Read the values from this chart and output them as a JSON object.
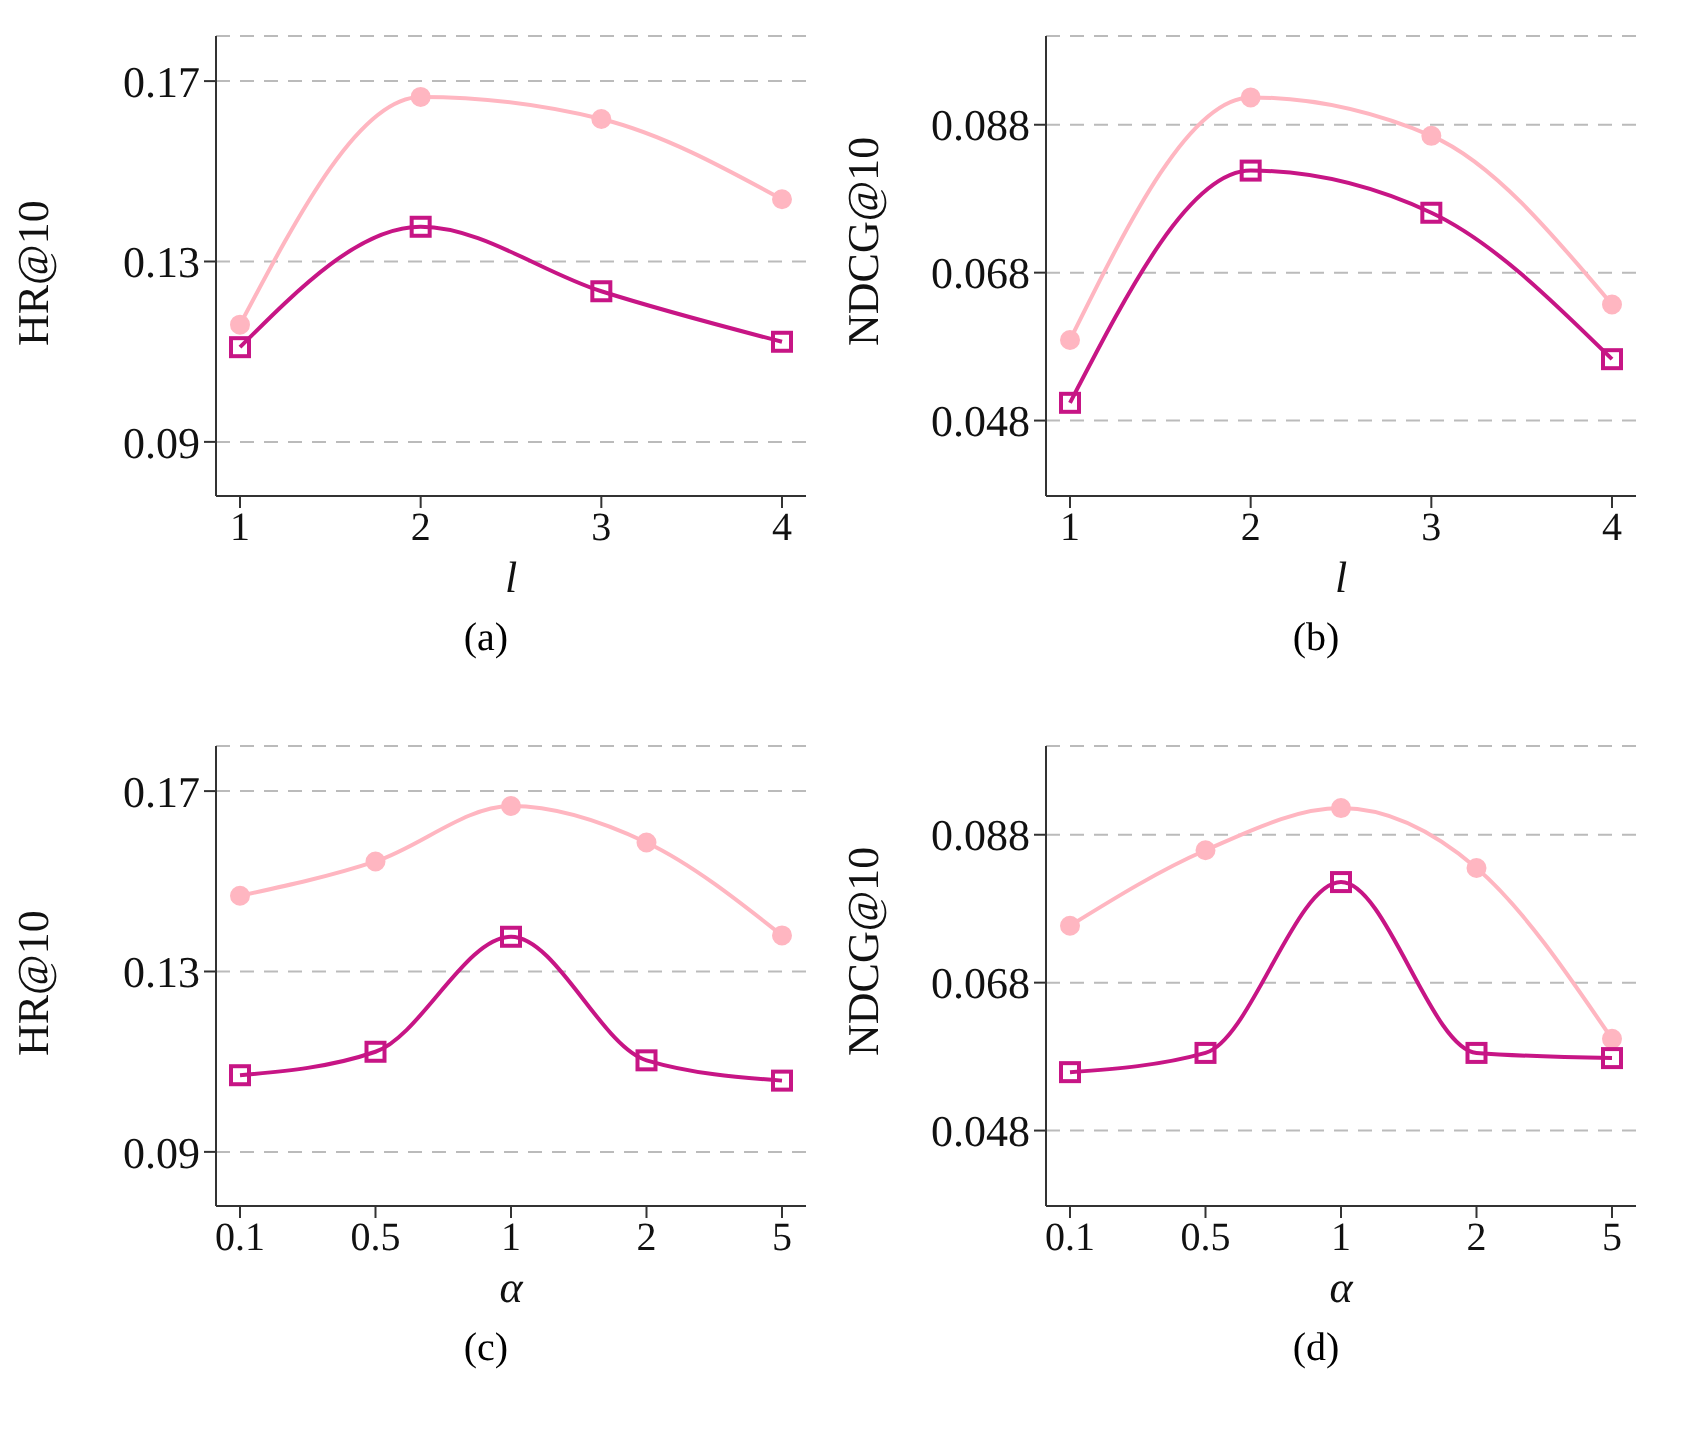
{
  "chart_data": [
    {
      "type": "line",
      "xlabel": "l",
      "ylabel": "HR@10",
      "categories": [
        "1",
        "2",
        "3",
        "4"
      ],
      "ylim": [
        0.078,
        0.18
      ],
      "yticks": [
        0.09,
        0.13,
        0.17
      ],
      "grid": "y",
      "legend": false,
      "annotations": [
        "(a)"
      ],
      "series": [
        {
          "color": "#ffb6c1",
          "marker": "circle",
          "values": [
            0.116,
            0.1665,
            0.1616,
            0.1438
          ]
        },
        {
          "color": "#c71585",
          "marker": "square",
          "values": [
            0.111,
            0.1377,
            0.1234,
            0.1122
          ]
        }
      ]
    },
    {
      "type": "line",
      "xlabel": "l",
      "ylabel": "NDCG@10",
      "categories": [
        "1",
        "2",
        "3",
        "4"
      ],
      "ylim": [
        0.0378,
        0.1
      ],
      "yticks": [
        0.048,
        0.068,
        0.088
      ],
      "grid": "y",
      "legend": false,
      "annotations": [
        "(b)"
      ],
      "series": [
        {
          "color": "#ffb6c1",
          "marker": "circle",
          "values": [
            0.0589,
            0.0917,
            0.0865,
            0.0637
          ]
        },
        {
          "color": "#c71585",
          "marker": "square",
          "values": [
            0.0504,
            0.0818,
            0.0761,
            0.0563
          ]
        }
      ]
    },
    {
      "type": "line",
      "xlabel": "α",
      "ylabel": "HR@10",
      "categories": [
        "0.1",
        "0.5",
        "1",
        "2",
        "5"
      ],
      "ylim": [
        0.078,
        0.18
      ],
      "yticks": [
        0.09,
        0.13,
        0.17
      ],
      "grid": "y",
      "legend": false,
      "annotations": [
        "(c)"
      ],
      "series": [
        {
          "color": "#ffb6c1",
          "marker": "circle",
          "values": [
            0.1468,
            0.1544,
            0.1667,
            0.1586,
            0.138
          ]
        },
        {
          "color": "#c71585",
          "marker": "square",
          "values": [
            0.107,
            0.1122,
            0.1377,
            0.1103,
            0.1058
          ]
        }
      ]
    },
    {
      "type": "line",
      "xlabel": "α",
      "ylabel": "NDCG@10",
      "categories": [
        "0.1",
        "0.5",
        "1",
        "2",
        "5"
      ],
      "ylim": [
        0.0378,
        0.1
      ],
      "yticks": [
        0.048,
        0.068,
        0.088
      ],
      "grid": "y",
      "legend": false,
      "annotations": [
        "(d)"
      ],
      "series": [
        {
          "color": "#ffb6c1",
          "marker": "circle",
          "values": [
            0.0757,
            0.0859,
            0.0916,
            0.0835,
            0.0604
          ]
        },
        {
          "color": "#c71585",
          "marker": "square",
          "values": [
            0.0559,
            0.0585,
            0.0816,
            0.0585,
            0.0578
          ]
        }
      ]
    }
  ]
}
